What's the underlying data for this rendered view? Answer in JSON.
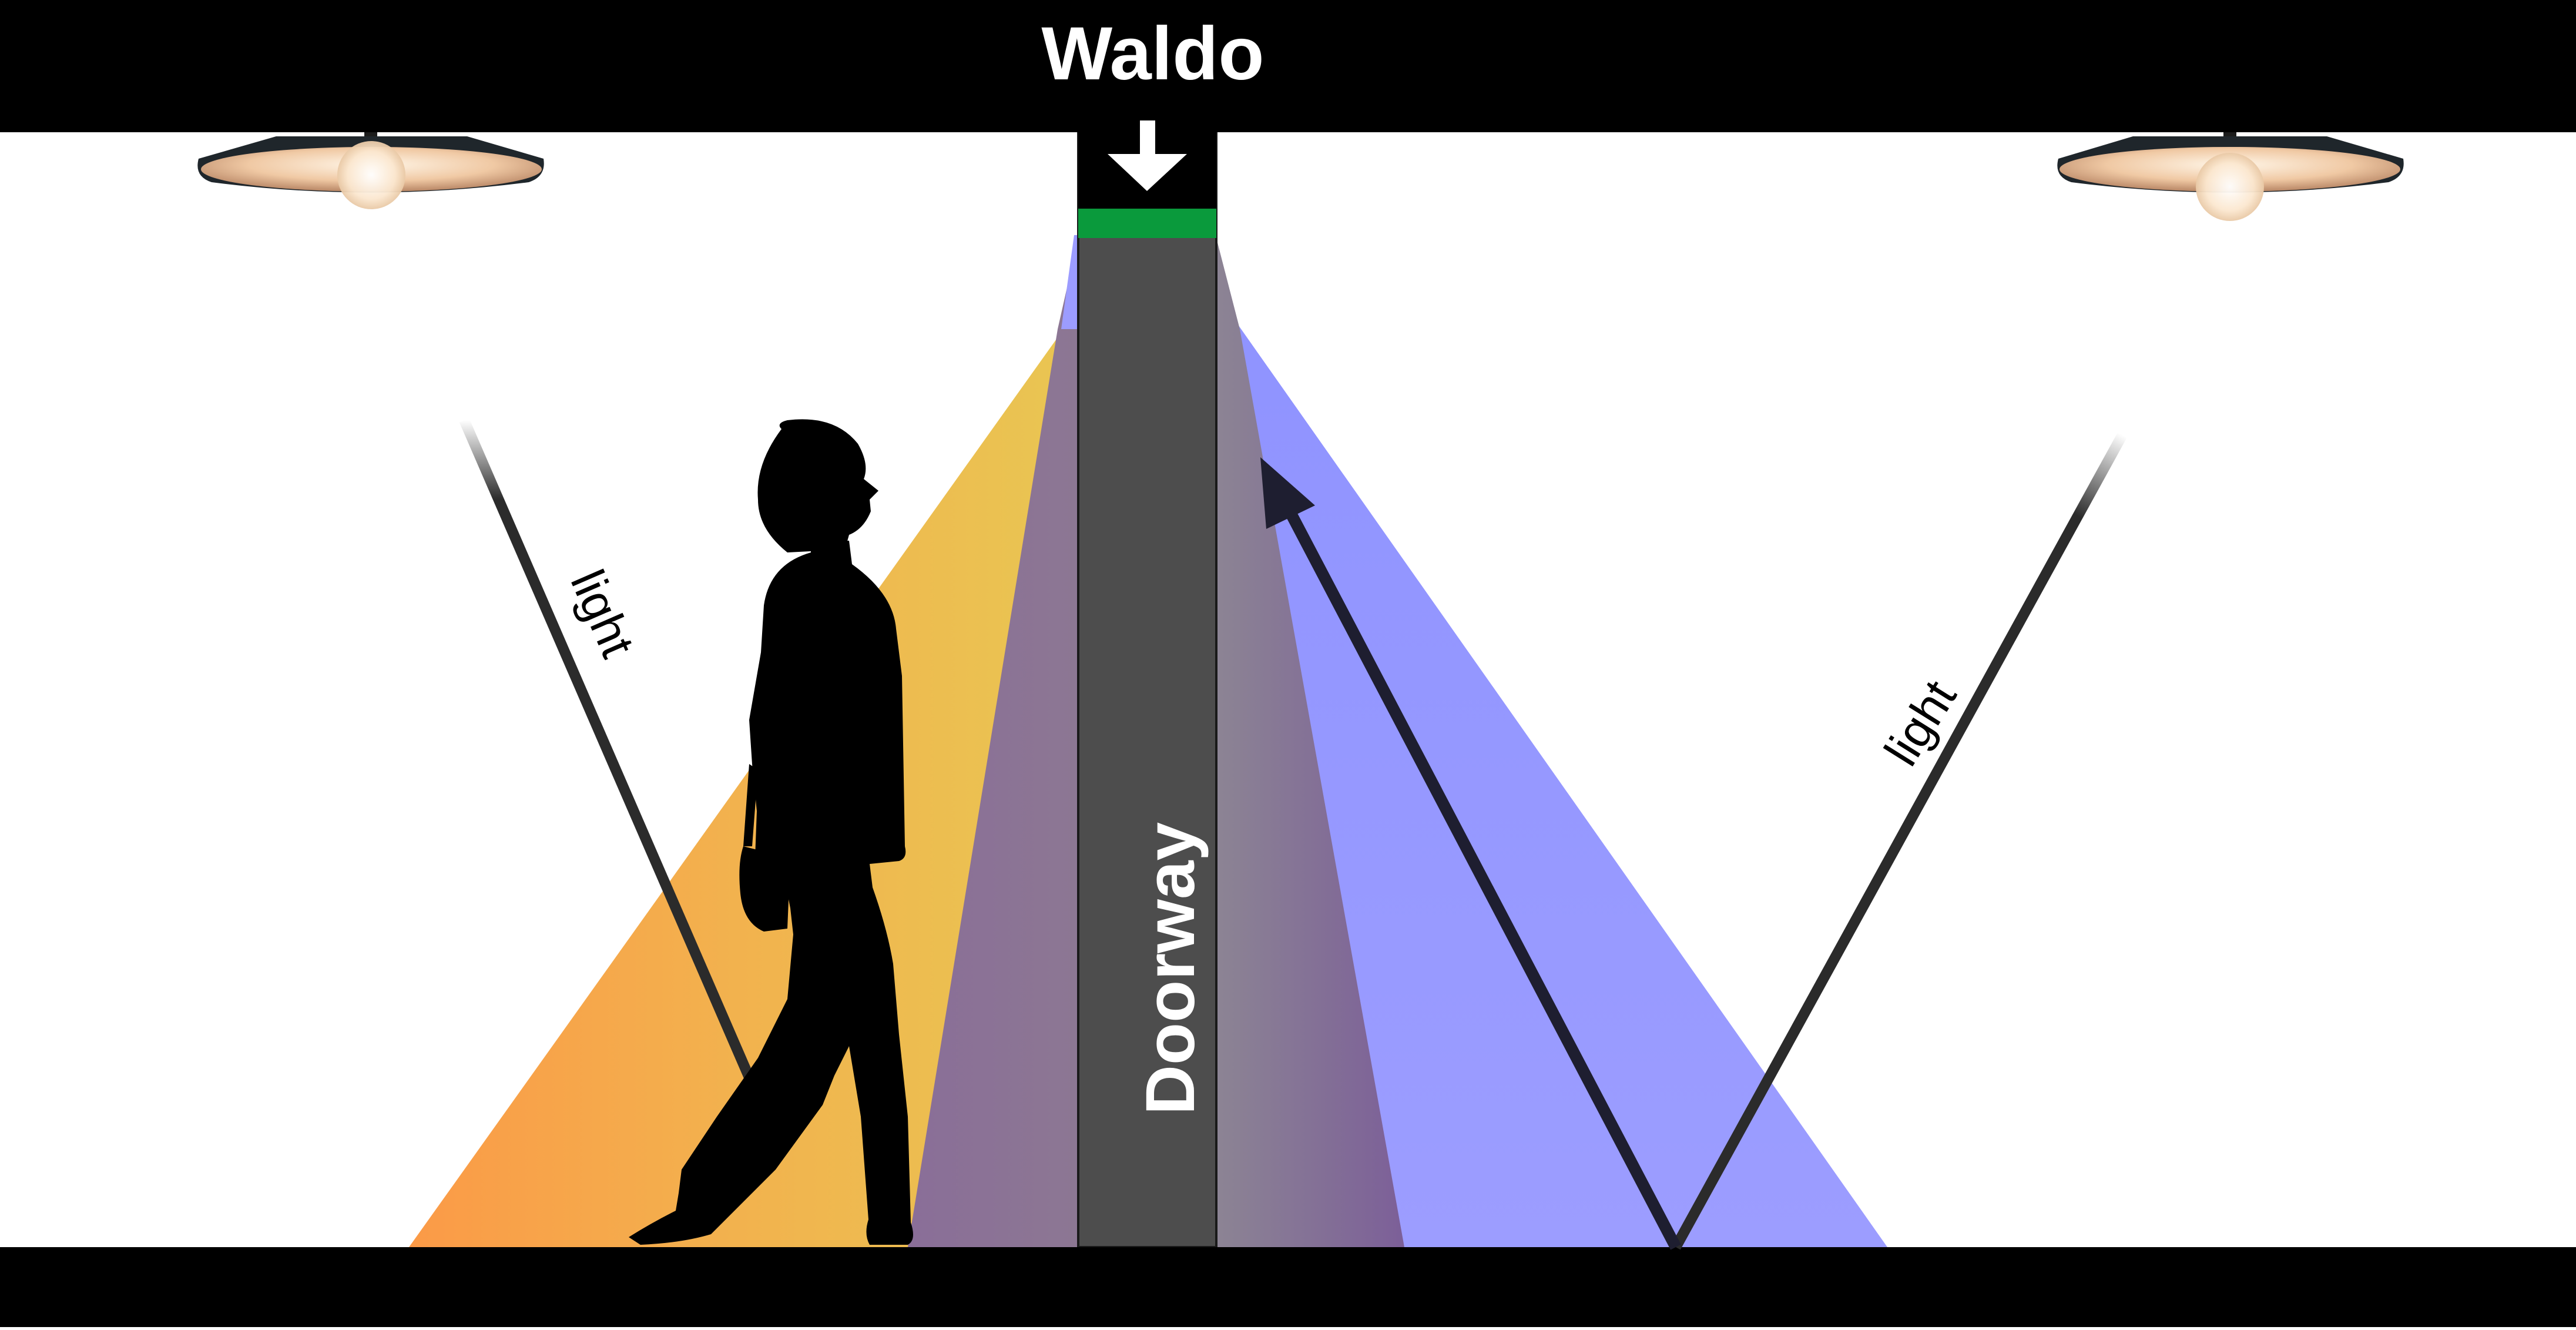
{
  "header": {
    "title": "Waldo"
  },
  "doorway": {
    "label": "Doorway"
  },
  "rays": {
    "left_label": "light",
    "right_label": "light"
  },
  "colors": {
    "frame": "#000000",
    "doorway": "#4d4d4d",
    "sensor_strip": "#0a9a3c",
    "orange_cone": "#f3a23a",
    "blue_cone": "#9a9cff",
    "overlap": "#8a7294",
    "ray": "#2b2b2b",
    "arrow": "#1e1e30"
  },
  "icons": {
    "down_arrow": "down-arrow-icon",
    "lamp": "ceiling-lamp-icon",
    "person": "person-silhouette-icon"
  }
}
